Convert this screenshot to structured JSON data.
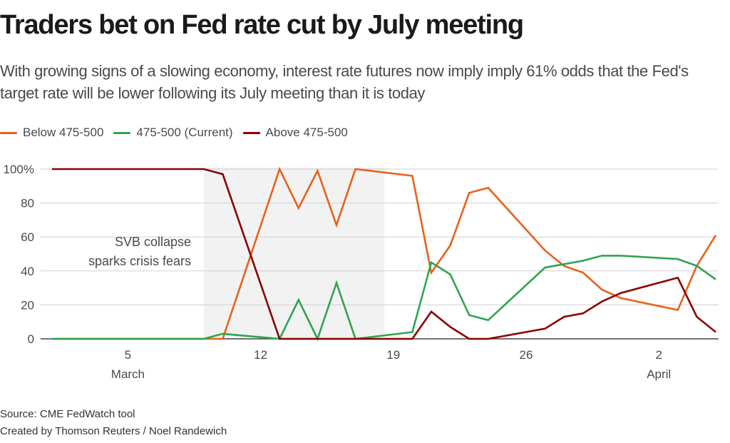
{
  "header": {
    "title": "Traders bet on Fed rate cut by July meeting",
    "subtitle": "With growing signs of a slowing economy, interest rate futures now imply imply 61% odds that the Fed's target rate will be lower following its July meeting than it is today"
  },
  "footer": {
    "source": "Source: CME FedWatch tool",
    "credit": "Created by Thomson Reuters / Noel Randewich"
  },
  "chart_data": {
    "type": "line",
    "title": "Traders bet on Fed rate cut by July meeting",
    "xlabel": "",
    "ylabel": "",
    "ylim": [
      0,
      100
    ],
    "y_ticks": [
      0,
      20,
      40,
      60,
      80,
      100
    ],
    "y_tick_labels": [
      "0",
      "20",
      "40",
      "60",
      "80",
      "100%"
    ],
    "x_ticks": [
      {
        "day": 5,
        "label": "5",
        "sublabel": "March"
      },
      {
        "day": 12,
        "label": "12",
        "sublabel": ""
      },
      {
        "day": 19,
        "label": "19",
        "sublabel": ""
      },
      {
        "day": 26,
        "label": "26",
        "sublabel": ""
      },
      {
        "day": 33,
        "label": "2",
        "sublabel": "April"
      }
    ],
    "x_unit": "day of March (April 1 = 32)",
    "xlim": [
      1,
      36
    ],
    "grid": true,
    "legend_position": "top-left",
    "shaded_region": {
      "from_day": 9,
      "to_day": 18,
      "color": "#f2f2f2"
    },
    "annotation": {
      "lines": [
        "SVB collapse",
        "sparks crisis fears"
      ],
      "day": 7.5,
      "value": 60
    },
    "x": [
      1,
      2,
      3,
      6,
      7,
      8,
      9,
      10,
      13,
      14,
      15,
      16,
      17,
      20,
      21,
      22,
      23,
      24,
      27,
      28,
      29,
      30,
      31,
      34,
      35,
      36
    ],
    "series": [
      {
        "name": "Below 475-500",
        "color": "#e8611a",
        "values": [
          0,
          0,
          0,
          0,
          0,
          0,
          0,
          0,
          100,
          77,
          99,
          67,
          100,
          96,
          39,
          55,
          86,
          89,
          52,
          43,
          39,
          29,
          24,
          17,
          43,
          61
        ]
      },
      {
        "name": "475-500 (Current)",
        "color": "#2ea44f",
        "values": [
          0,
          0,
          0,
          0,
          0,
          0,
          0,
          3,
          0,
          23,
          0,
          33,
          0,
          4,
          45,
          38,
          14,
          11,
          42,
          44,
          46,
          49,
          49,
          47,
          43,
          35
        ]
      },
      {
        "name": "Above 475-500",
        "color": "#8b0000",
        "values": [
          100,
          100,
          100,
          100,
          100,
          100,
          100,
          97,
          0,
          0,
          0,
          0,
          0,
          0,
          16,
          7,
          0,
          0,
          6,
          13,
          15,
          22,
          27,
          36,
          13,
          4
        ]
      }
    ]
  }
}
